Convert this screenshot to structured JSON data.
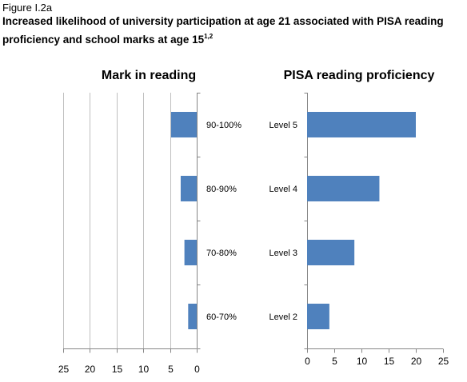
{
  "figure": {
    "label": "Figure I.2a",
    "title": "Increased likelihood of university participation at age 21 associated with PISA reading proficiency and school marks at age 15",
    "title_sup": "1,2"
  },
  "colors": {
    "bar": "#4f81bd",
    "grid": "#bfbfbf",
    "axis": "#868686"
  },
  "chart_data": [
    {
      "type": "bar",
      "orientation": "horizontal",
      "x_direction": "reversed",
      "title": "Mark in reading",
      "categories": [
        "90-100%",
        "80-90%",
        "70-80%",
        "60-70%"
      ],
      "values": [
        4.8,
        3.0,
        2.3,
        1.6
      ],
      "xlim": [
        0,
        25
      ],
      "xticks": [
        25,
        20,
        15,
        10,
        5,
        0
      ],
      "grid": true,
      "category_labels_side": "right"
    },
    {
      "type": "bar",
      "orientation": "horizontal",
      "title": "PISA reading proficiency",
      "categories": [
        "Level 5",
        "Level 4",
        "Level 3",
        "Level 2"
      ],
      "values": [
        20,
        13.3,
        8.7,
        4.1
      ],
      "xlim": [
        0,
        25
      ],
      "xticks": [
        0,
        5,
        10,
        15,
        20,
        25
      ],
      "grid": false,
      "category_labels_side": "left"
    }
  ]
}
